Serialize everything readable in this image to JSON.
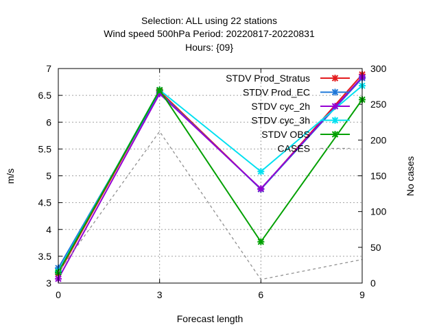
{
  "chart_data": {
    "type": "line",
    "title_lines": [
      "Selection: ALL using     22 stations",
      "Wind speed 500hPa   Period: 20220817-20220831",
      "Hours: {09}"
    ],
    "xlabel": "Forecast length",
    "ylabel": "m/s",
    "y2label": "No cases",
    "x": [
      0,
      3,
      6,
      9
    ],
    "xlim": [
      0,
      9
    ],
    "ylim": [
      3,
      7
    ],
    "y2lim": [
      0,
      300
    ],
    "xticks": [
      "0",
      "3",
      "6",
      "9"
    ],
    "yticks": [
      "3",
      "3.5",
      "4",
      "4.5",
      "5",
      "5.5",
      "6",
      "6.5",
      "7"
    ],
    "y2ticks": [
      "0",
      "50",
      "100",
      "150",
      "200",
      "250",
      "300"
    ],
    "grid": true,
    "legend_position": "top-right",
    "series": [
      {
        "name": "STDV Prod_Stratus",
        "color": "#e41a1c",
        "values": [
          3.17,
          6.58,
          4.75,
          6.89
        ],
        "axis": "left",
        "dashed": false
      },
      {
        "name": "STDV Prod_EC",
        "color": "#1f78d8",
        "values": [
          3.28,
          6.55,
          4.75,
          6.82
        ],
        "axis": "left",
        "dashed": false
      },
      {
        "name": "STDV cyc_2h",
        "color": "#9400d3",
        "values": [
          3.08,
          6.53,
          4.76,
          6.84
        ],
        "axis": "left",
        "dashed": false
      },
      {
        "name": "STDV cyc_3h",
        "color": "#00e0f0",
        "values": [
          3.22,
          6.6,
          5.08,
          6.68
        ],
        "axis": "left",
        "dashed": false
      },
      {
        "name": "STDV OBS",
        "color": "#00a000",
        "values": [
          3.2,
          6.6,
          3.77,
          6.42
        ],
        "axis": "left",
        "dashed": false
      },
      {
        "name": "CASES",
        "color": "#909090",
        "values": [
          15,
          212,
          5,
          33
        ],
        "axis": "right",
        "dashed": true
      }
    ]
  }
}
